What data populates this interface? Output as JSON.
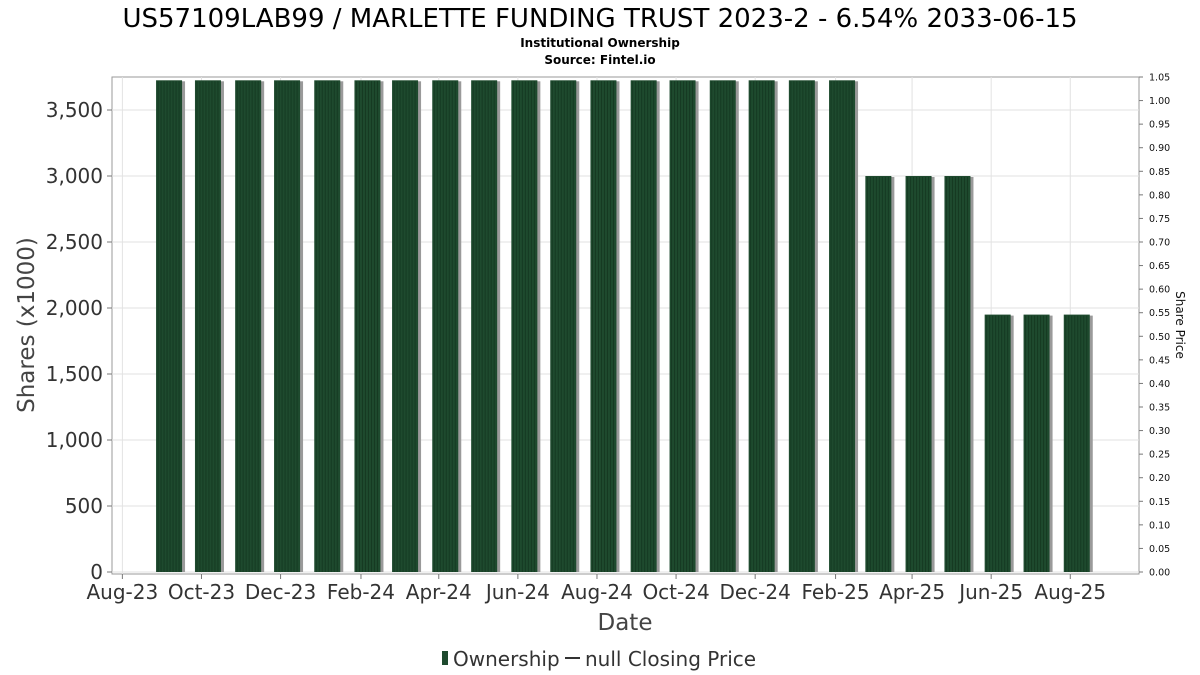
{
  "chart_data": {
    "type": "bar",
    "title": "US57109LAB99 / MARLETTE FUNDING TRUST 2023-2 - 6.54% 2033-06-15",
    "subtitle": "Institutional Ownership",
    "source": "Source: Fintel.io",
    "xlabel": "Date",
    "ylabel": "Shares (x1000)",
    "ylabel_right": "Share Price",
    "ylim": [
      0,
      3750
    ],
    "ylim_right": [
      0.0,
      1.05
    ],
    "y_ticks": [
      0,
      500,
      1000,
      1500,
      2000,
      2500,
      3000,
      3500
    ],
    "y_tick_labels": [
      "0",
      "500",
      "1,000",
      "1,500",
      "2,000",
      "2,500",
      "3,000",
      "3,500"
    ],
    "y_right_ticks": [
      0.0,
      0.05,
      0.1,
      0.15,
      0.2,
      0.25,
      0.3,
      0.35,
      0.4,
      0.45,
      0.5,
      0.55,
      0.6,
      0.65,
      0.7,
      0.75,
      0.8,
      0.85,
      0.9,
      0.95,
      1.0,
      1.05
    ],
    "y_right_tick_labels": [
      "0.00",
      "0.05",
      "0.10",
      "0.15",
      "0.20",
      "0.25",
      "0.30",
      "0.35",
      "0.40",
      "0.45",
      "0.50",
      "0.55",
      "0.60",
      "0.65",
      "0.70",
      "0.75",
      "0.80",
      "0.85",
      "0.90",
      "0.95",
      "1.00",
      "1.05"
    ],
    "x_range": [
      "2023-07-24",
      "2025-09-23"
    ],
    "x_ticks": [
      {
        "date": "2023-08-01",
        "label": "Aug-23"
      },
      {
        "date": "2023-10-01",
        "label": "Oct-23"
      },
      {
        "date": "2023-12-01",
        "label": "Dec-23"
      },
      {
        "date": "2024-02-01",
        "label": "Feb-24"
      },
      {
        "date": "2024-04-01",
        "label": "Apr-24"
      },
      {
        "date": "2024-06-01",
        "label": "Jun-24"
      },
      {
        "date": "2024-08-01",
        "label": "Aug-24"
      },
      {
        "date": "2024-10-01",
        "label": "Oct-24"
      },
      {
        "date": "2024-12-01",
        "label": "Dec-24"
      },
      {
        "date": "2025-02-01",
        "label": "Feb-25"
      },
      {
        "date": "2025-04-01",
        "label": "Apr-25"
      },
      {
        "date": "2025-06-01",
        "label": "Jun-25"
      },
      {
        "date": "2025-08-01",
        "label": "Aug-25"
      }
    ],
    "grid": true,
    "legend_position": "bottom",
    "series": [
      {
        "name": "Ownership",
        "color": "#1e4a2e",
        "points": [
          {
            "date": "2023-09-06",
            "value": 3725
          },
          {
            "date": "2023-10-06",
            "value": 3725
          },
          {
            "date": "2023-11-06",
            "value": 3725
          },
          {
            "date": "2023-12-06",
            "value": 3725
          },
          {
            "date": "2024-01-06",
            "value": 3725
          },
          {
            "date": "2024-02-06",
            "value": 3725
          },
          {
            "date": "2024-03-06",
            "value": 3725
          },
          {
            "date": "2024-04-06",
            "value": 3725
          },
          {
            "date": "2024-05-06",
            "value": 3725
          },
          {
            "date": "2024-06-06",
            "value": 3725
          },
          {
            "date": "2024-07-06",
            "value": 3725
          },
          {
            "date": "2024-08-06",
            "value": 3725
          },
          {
            "date": "2024-09-06",
            "value": 3725
          },
          {
            "date": "2024-10-06",
            "value": 3725
          },
          {
            "date": "2024-11-06",
            "value": 3725
          },
          {
            "date": "2024-12-06",
            "value": 3725
          },
          {
            "date": "2025-01-06",
            "value": 3725
          },
          {
            "date": "2025-02-06",
            "value": 3725
          },
          {
            "date": "2025-03-06",
            "value": 3000
          },
          {
            "date": "2025-04-06",
            "value": 3000
          },
          {
            "date": "2025-05-06",
            "value": 3000
          },
          {
            "date": "2025-06-06",
            "value": 1950
          },
          {
            "date": "2025-07-06",
            "value": 1950
          },
          {
            "date": "2025-08-06",
            "value": 1950
          }
        ]
      },
      {
        "name": "null Closing Price",
        "color": "#333333",
        "points": []
      }
    ]
  }
}
